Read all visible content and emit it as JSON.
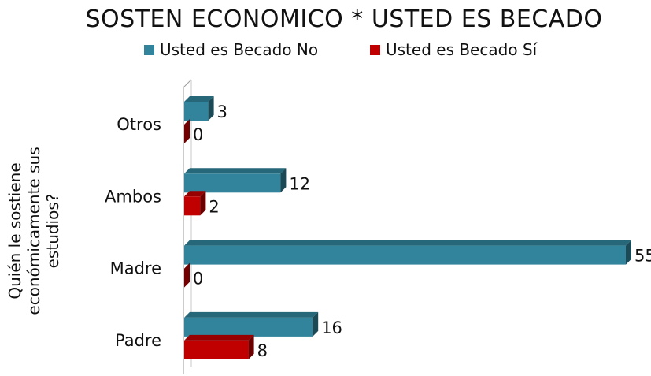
{
  "chart_data": {
    "type": "bar",
    "orientation": "horizontal",
    "style": "3d-clustered-bar",
    "title": "SOSTEN ECONOMICO * USTED ES BECADO",
    "ylabel_lines": [
      "Quién le sostiene",
      "económicamente sus",
      "estudios?"
    ],
    "xlabel": "",
    "categories": [
      "Otros",
      "Ambos",
      "Madre",
      "Padre"
    ],
    "series": [
      {
        "name": "Usted es Becado No",
        "color": "#31849B",
        "values": [
          3,
          12,
          55,
          16
        ]
      },
      {
        "name": "Usted es Becado Sí",
        "color": "#C00000",
        "values": [
          0,
          2,
          0,
          8
        ]
      }
    ],
    "xlim": [
      0,
      55
    ],
    "legend_position": "top",
    "grid": false
  }
}
